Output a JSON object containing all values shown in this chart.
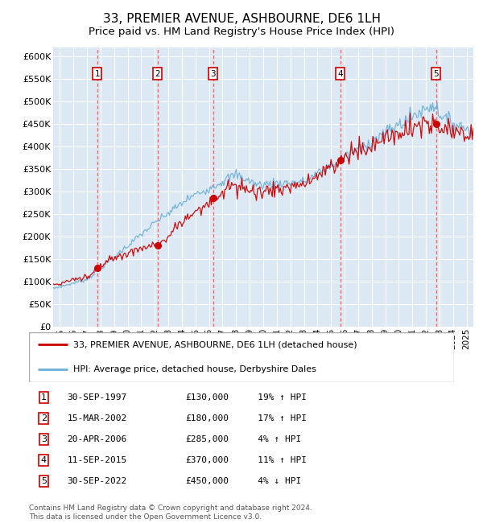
{
  "title": "33, PREMIER AVENUE, ASHBOURNE, DE6 1LH",
  "subtitle": "Price paid vs. HM Land Registry's House Price Index (HPI)",
  "title_fontsize": 11,
  "subtitle_fontsize": 9.5,
  "background_color": "#ffffff",
  "plot_bg_color": "#dce9f5",
  "grid_color": "#ffffff",
  "ylim": [
    0,
    620000
  ],
  "yticks": [
    0,
    50000,
    100000,
    150000,
    200000,
    250000,
    300000,
    350000,
    400000,
    450000,
    500000,
    550000,
    600000
  ],
  "ytick_labels": [
    "£0",
    "£50K",
    "£100K",
    "£150K",
    "£200K",
    "£250K",
    "£300K",
    "£350K",
    "£400K",
    "£450K",
    "£500K",
    "£550K",
    "£600K"
  ],
  "sale_dates_num": [
    1997.75,
    2002.21,
    2006.31,
    2015.69,
    2022.75
  ],
  "sale_prices": [
    130000,
    180000,
    285000,
    370000,
    450000
  ],
  "sale_labels": [
    "1",
    "2",
    "3",
    "4",
    "5"
  ],
  "sale_dates_str": [
    "30-SEP-1997",
    "15-MAR-2002",
    "20-APR-2006",
    "11-SEP-2015",
    "30-SEP-2022"
  ],
  "sale_pct": [
    "19%",
    "17%",
    "4%",
    "11%",
    "4%"
  ],
  "sale_direction": [
    "↑",
    "↑",
    "↑",
    "↑",
    "↓"
  ],
  "hpi_line_color": "#6baed6",
  "price_line_color": "#cc0000",
  "sale_marker_color": "#cc0000",
  "sale_box_color": "#cc0000",
  "vline_color": "#ff6666",
  "legend_line1": "33, PREMIER AVENUE, ASHBOURNE, DE6 1LH (detached house)",
  "legend_line2": "HPI: Average price, detached house, Derbyshire Dales",
  "footer": "Contains HM Land Registry data © Crown copyright and database right 2024.\nThis data is licensed under the Open Government Licence v3.0.",
  "xmin": 1994.5,
  "xmax": 2025.5
}
